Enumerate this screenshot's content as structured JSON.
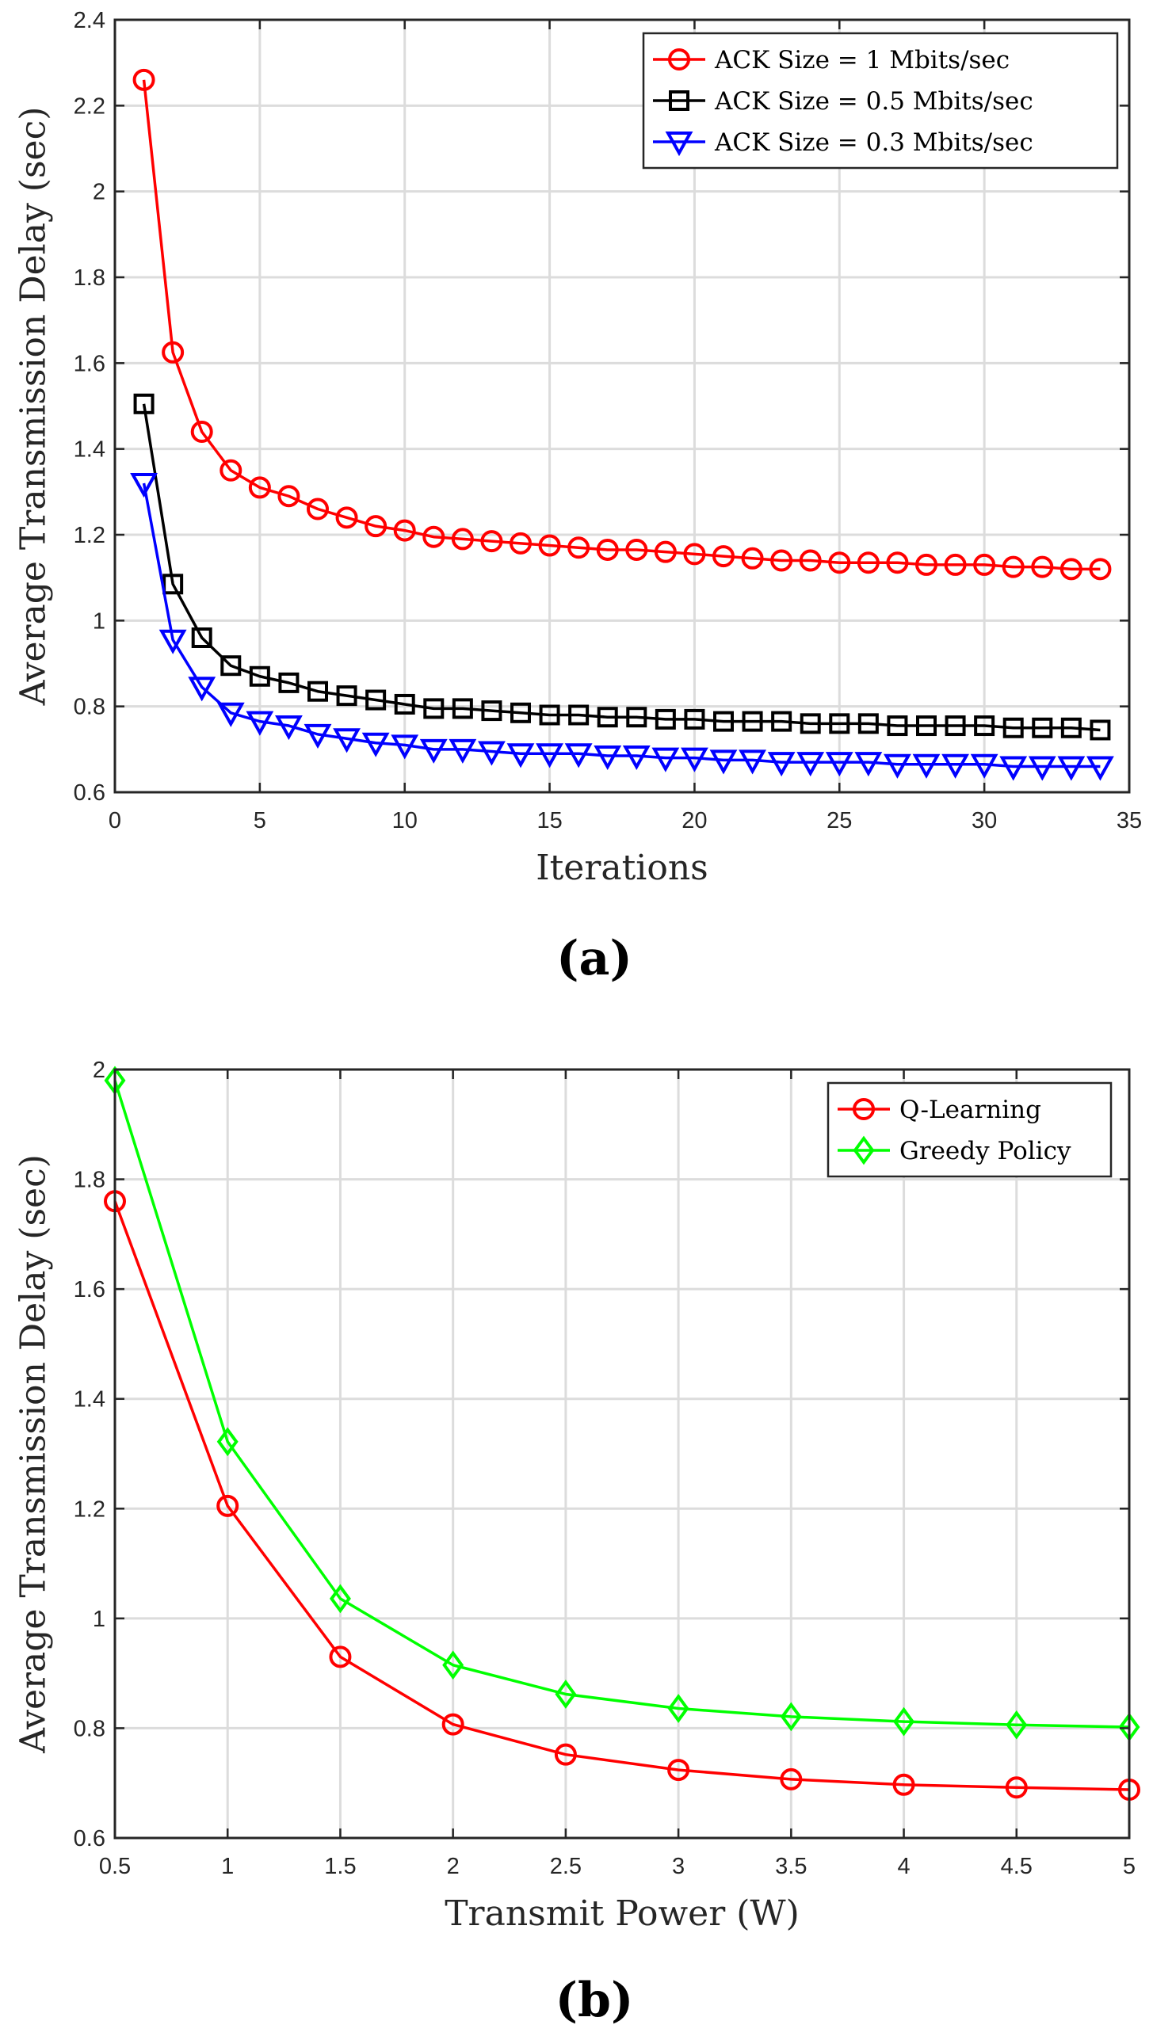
{
  "chart_data": [
    {
      "type": "line",
      "caption": "(a)",
      "xlabel": "Iterations",
      "ylabel": "Average Transmission Delay (sec)",
      "xlim": [
        0,
        35
      ],
      "ylim": [
        0.6,
        2.4
      ],
      "xticks": [
        0,
        5,
        10,
        15,
        20,
        25,
        30,
        35
      ],
      "yticks": [
        0.6,
        0.8,
        1,
        1.2,
        1.4,
        1.6,
        1.8,
        2,
        2.2,
        2.4
      ],
      "xtick_labels": [
        "0",
        "5",
        "10",
        "15",
        "20",
        "25",
        "30",
        "35"
      ],
      "ytick_labels": [
        "0.6",
        "0.8",
        "1",
        "1.2",
        "1.4",
        "1.6",
        "1.8",
        "2",
        "2.2",
        "2.4"
      ],
      "grid": true,
      "legend": "top-right",
      "x": [
        1,
        2,
        3,
        4,
        5,
        6,
        7,
        8,
        9,
        10,
        11,
        12,
        13,
        14,
        15,
        16,
        17,
        18,
        19,
        20,
        21,
        22,
        23,
        24,
        25,
        26,
        27,
        28,
        29,
        30,
        31,
        32,
        33,
        34
      ],
      "series": [
        {
          "name": "ACK Size = 1 Mbits/sec",
          "color": "#ff0000",
          "marker": "circle",
          "values": [
            2.26,
            1.625,
            1.44,
            1.35,
            1.31,
            1.29,
            1.26,
            1.24,
            1.22,
            1.21,
            1.195,
            1.19,
            1.185,
            1.18,
            1.175,
            1.17,
            1.165,
            1.165,
            1.16,
            1.155,
            1.15,
            1.145,
            1.14,
            1.14,
            1.135,
            1.135,
            1.135,
            1.13,
            1.13,
            1.13,
            1.125,
            1.125,
            1.12,
            1.12
          ]
        },
        {
          "name": "ACK Size = 0.5 Mbits/sec",
          "color": "#000000",
          "marker": "square",
          "values": [
            1.505,
            1.085,
            0.96,
            0.895,
            0.87,
            0.855,
            0.835,
            0.825,
            0.815,
            0.805,
            0.795,
            0.795,
            0.79,
            0.785,
            0.78,
            0.78,
            0.775,
            0.775,
            0.77,
            0.77,
            0.765,
            0.765,
            0.765,
            0.76,
            0.76,
            0.76,
            0.755,
            0.755,
            0.755,
            0.755,
            0.75,
            0.75,
            0.75,
            0.745
          ]
        },
        {
          "name": "ACK Size = 0.3 Mbits/sec",
          "color": "#0000ff",
          "marker": "triangle-down",
          "values": [
            1.32,
            0.955,
            0.845,
            0.785,
            0.765,
            0.755,
            0.735,
            0.725,
            0.715,
            0.71,
            0.7,
            0.7,
            0.695,
            0.69,
            0.69,
            0.69,
            0.685,
            0.685,
            0.68,
            0.68,
            0.675,
            0.675,
            0.67,
            0.67,
            0.67,
            0.67,
            0.665,
            0.665,
            0.665,
            0.665,
            0.66,
            0.66,
            0.66,
            0.66
          ]
        }
      ]
    },
    {
      "type": "line",
      "caption": "(b)",
      "xlabel": "Transmit Power (W)",
      "ylabel": "Average Transmission Delay (sec)",
      "xlim": [
        0.5,
        5
      ],
      "ylim": [
        0.6,
        2
      ],
      "xticks": [
        0.5,
        1,
        1.5,
        2,
        2.5,
        3,
        3.5,
        4,
        4.5,
        5
      ],
      "yticks": [
        0.6,
        0.8,
        1,
        1.2,
        1.4,
        1.6,
        1.8,
        2
      ],
      "xtick_labels": [
        "0.5",
        "1",
        "1.5",
        "2",
        "2.5",
        "3",
        "3.5",
        "4",
        "4.5",
        "5"
      ],
      "ytick_labels": [
        "0.6",
        "0.8",
        "1",
        "1.2",
        "1.4",
        "1.6",
        "1.8",
        "2"
      ],
      "grid": true,
      "legend": "top-right",
      "x": [
        0.5,
        1,
        1.5,
        2,
        2.5,
        3,
        3.5,
        4,
        4.5,
        5
      ],
      "series": [
        {
          "name": "Q-Learning",
          "color": "#ff0000",
          "marker": "circle",
          "values": [
            1.76,
            1.205,
            0.93,
            0.807,
            0.752,
            0.724,
            0.707,
            0.697,
            0.692,
            0.688
          ]
        },
        {
          "name": "Greedy Policy",
          "color": "#00ff00",
          "marker": "diamond",
          "values": [
            1.98,
            1.322,
            1.036,
            0.915,
            0.862,
            0.836,
            0.821,
            0.812,
            0.806,
            0.802
          ]
        }
      ]
    }
  ]
}
